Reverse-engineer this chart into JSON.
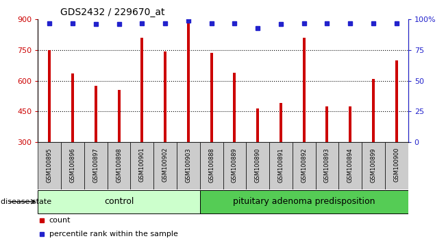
{
  "title": "GDS2432 / 229670_at",
  "samples": [
    "GSM100895",
    "GSM100896",
    "GSM100897",
    "GSM100898",
    "GSM100901",
    "GSM100902",
    "GSM100903",
    "GSM100888",
    "GSM100889",
    "GSM100890",
    "GSM100891",
    "GSM100892",
    "GSM100893",
    "GSM100894",
    "GSM100899",
    "GSM100900"
  ],
  "counts": [
    750,
    635,
    575,
    555,
    810,
    745,
    890,
    735,
    640,
    465,
    490,
    810,
    475,
    475,
    610,
    700
  ],
  "percentiles": [
    97,
    97,
    96,
    96,
    97,
    97,
    99,
    97,
    97,
    93,
    96,
    97,
    97,
    97,
    97,
    97
  ],
  "n_control": 7,
  "ymin": 300,
  "ymax": 900,
  "bar_color": "#cc0000",
  "dot_color": "#2222cc",
  "grid_values": [
    450,
    600,
    750
  ],
  "control_color": "#ccffcc",
  "pit_color": "#55cc55",
  "label_bg_color": "#cccccc",
  "title_fontsize": 10,
  "tick_fontsize": 8,
  "legend_fontsize": 8,
  "bar_width": 0.12
}
